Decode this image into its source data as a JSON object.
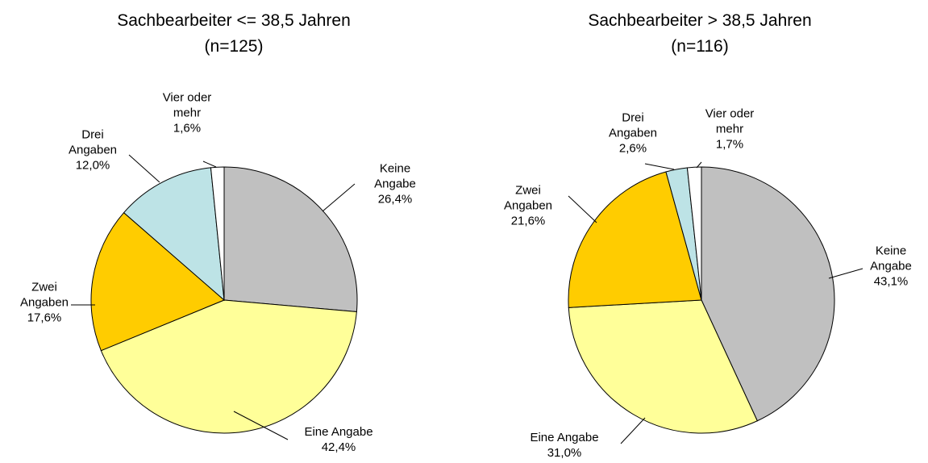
{
  "chart_data": [
    {
      "type": "pie",
      "title": "Sachbearbeiter <= 38,5 Jahren",
      "subtitle": "(n=125)",
      "categories": [
        "Keine Angabe",
        "Eine Angabe",
        "Zwei Angaben",
        "Drei Angaben",
        "Vier oder mehr"
      ],
      "values": [
        26.4,
        42.4,
        17.6,
        12.0,
        1.6
      ],
      "value_labels": [
        "26,4%",
        "42,4%",
        "17,6%",
        "12,0%",
        "1,6%"
      ],
      "colors": [
        "#c0c0c0",
        "#ffff99",
        "#ffcc00",
        "#bde3e6",
        "#ffffff"
      ]
    },
    {
      "type": "pie",
      "title": "Sachbearbeiter > 38,5 Jahren",
      "subtitle": "(n=116)",
      "categories": [
        "Keine Angabe",
        "Eine Angabe",
        "Zwei Angaben",
        "Drei Angaben",
        "Vier oder mehr"
      ],
      "values": [
        43.1,
        31.0,
        21.6,
        2.6,
        1.7
      ],
      "value_labels": [
        "43,1%",
        "31,0%",
        "21,6%",
        "2,6%",
        "1,7%"
      ],
      "colors": [
        "#c0c0c0",
        "#ffff99",
        "#ffcc00",
        "#bde3e6",
        "#ffffff"
      ]
    }
  ]
}
